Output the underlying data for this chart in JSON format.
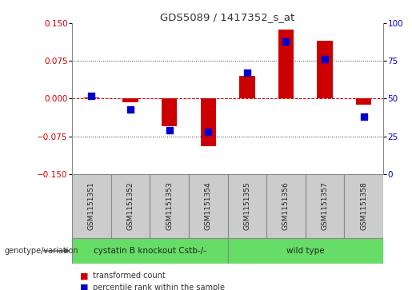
{
  "title": "GDS5089 / 1417352_s_at",
  "samples": [
    "GSM1151351",
    "GSM1151352",
    "GSM1151353",
    "GSM1151354",
    "GSM1151355",
    "GSM1151356",
    "GSM1151357",
    "GSM1151358"
  ],
  "transformed_count": [
    0.002,
    -0.008,
    -0.055,
    -0.095,
    0.045,
    0.138,
    0.115,
    -0.012
  ],
  "percentile_rank": [
    52,
    43,
    29,
    28,
    67,
    88,
    76,
    38
  ],
  "group1_label": "cystatin B knockout Cstb-/-",
  "group1_indices": [
    0,
    1,
    2,
    3
  ],
  "group2_label": "wild type",
  "group2_indices": [
    4,
    5,
    6,
    7
  ],
  "group_color": "#66DD66",
  "genotype_label": "genotype/variation",
  "ylim_left": [
    -0.15,
    0.15
  ],
  "ylim_right": [
    0,
    100
  ],
  "yticks_left": [
    -0.15,
    -0.075,
    0,
    0.075,
    0.15
  ],
  "yticks_right": [
    0,
    25,
    50,
    75,
    100
  ],
  "bar_color_red": "#CC0000",
  "bar_color_blue": "#0000CC",
  "zero_line_color": "#CC0000",
  "grid_color": "#333333",
  "bg_color": "#ffffff",
  "plot_bg": "#ffffff",
  "sample_box_color": "#CCCCCC",
  "bar_width": 0.4,
  "percentile_square_size": 35,
  "legend_red_label": "transformed count",
  "legend_blue_label": "percentile rank within the sample"
}
